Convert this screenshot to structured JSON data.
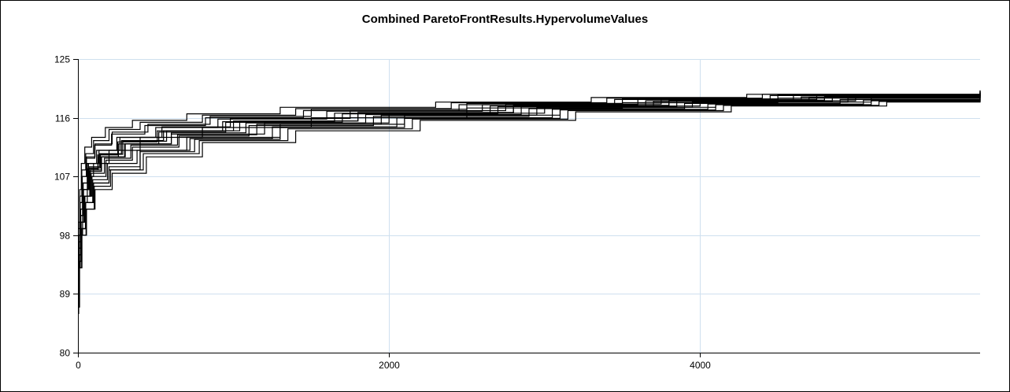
{
  "chart_data": {
    "type": "line",
    "title": "Combined ParetoFrontResults.HypervolumeValues",
    "xlabel": "",
    "ylabel": "",
    "xlim": [
      0,
      5800
    ],
    "ylim": [
      80,
      125
    ],
    "x_ticks": [
      0,
      2000,
      4000
    ],
    "y_ticks": [
      80,
      89,
      98,
      107,
      116,
      125
    ],
    "x_tick_labels": [
      "0",
      "2000",
      "4000"
    ],
    "y_tick_labels": [
      "80",
      "89",
      "98",
      "107",
      "116",
      "125"
    ],
    "grid": true,
    "legend": "none",
    "series_count": 20,
    "series": [
      {
        "values": [
          [
            0,
            86
          ],
          [
            5,
            93
          ],
          [
            15,
            98
          ],
          [
            30,
            103
          ],
          [
            60,
            107
          ],
          [
            100,
            109
          ],
          [
            200,
            111
          ],
          [
            400,
            113
          ],
          [
            800,
            114.5
          ],
          [
            1500,
            116
          ],
          [
            2500,
            117.5
          ],
          [
            3500,
            118.3
          ],
          [
            4500,
            119
          ],
          [
            5800,
            119.8
          ]
        ]
      },
      {
        "values": [
          [
            0,
            88
          ],
          [
            8,
            95
          ],
          [
            20,
            100
          ],
          [
            40,
            104
          ],
          [
            80,
            108
          ],
          [
            150,
            110
          ],
          [
            300,
            112
          ],
          [
            600,
            113.5
          ],
          [
            1200,
            115.2
          ],
          [
            2000,
            116.7
          ],
          [
            3000,
            117.8
          ],
          [
            4000,
            118.6
          ],
          [
            5000,
            119.2
          ],
          [
            5800,
            119.6
          ]
        ]
      },
      {
        "values": [
          [
            0,
            90
          ],
          [
            6,
            96
          ],
          [
            18,
            101
          ],
          [
            35,
            105
          ],
          [
            70,
            108.5
          ],
          [
            140,
            110.5
          ],
          [
            280,
            112.5
          ],
          [
            550,
            114
          ],
          [
            1000,
            115.5
          ],
          [
            1800,
            116.8
          ],
          [
            2800,
            117.9
          ],
          [
            3800,
            118.7
          ],
          [
            4800,
            119.3
          ],
          [
            5800,
            119.9
          ]
        ]
      },
      {
        "values": [
          [
            0,
            87
          ],
          [
            10,
            94
          ],
          [
            25,
            99
          ],
          [
            50,
            103
          ],
          [
            100,
            106
          ],
          [
            200,
            108
          ],
          [
            400,
            111
          ],
          [
            700,
            113
          ],
          [
            1300,
            115
          ],
          [
            2100,
            116.4
          ],
          [
            3100,
            117.6
          ],
          [
            4100,
            118.4
          ],
          [
            5100,
            119
          ],
          [
            5800,
            119.5
          ]
        ]
      },
      {
        "values": [
          [
            0,
            91
          ],
          [
            5,
            97
          ],
          [
            15,
            102
          ],
          [
            30,
            106
          ],
          [
            60,
            109
          ],
          [
            120,
            111
          ],
          [
            250,
            113
          ],
          [
            500,
            114.5
          ],
          [
            900,
            115.8
          ],
          [
            1600,
            117
          ],
          [
            2600,
            118
          ],
          [
            3600,
            118.8
          ],
          [
            4600,
            119.4
          ],
          [
            5800,
            120
          ]
        ]
      },
      {
        "values": [
          [
            0,
            89
          ],
          [
            7,
            95
          ],
          [
            20,
            100
          ],
          [
            45,
            104
          ],
          [
            90,
            107
          ],
          [
            180,
            109.5
          ],
          [
            350,
            111.5
          ],
          [
            650,
            113.2
          ],
          [
            1100,
            114.8
          ],
          [
            1900,
            116.2
          ],
          [
            2900,
            117.4
          ],
          [
            3900,
            118.2
          ],
          [
            4900,
            118.8
          ],
          [
            5800,
            119.2
          ]
        ]
      },
      {
        "values": [
          [
            0,
            92
          ],
          [
            6,
            98
          ],
          [
            14,
            103
          ],
          [
            28,
            107
          ],
          [
            55,
            110
          ],
          [
            110,
            112
          ],
          [
            220,
            113.8
          ],
          [
            450,
            115
          ],
          [
            850,
            116.2
          ],
          [
            1500,
            117.3
          ],
          [
            2500,
            118.2
          ],
          [
            3500,
            118.9
          ],
          [
            4500,
            119.5
          ],
          [
            5800,
            120.1
          ]
        ]
      },
      {
        "values": [
          [
            0,
            88
          ],
          [
            9,
            94
          ],
          [
            22,
            99
          ],
          [
            48,
            103
          ],
          [
            95,
            106.5
          ],
          [
            190,
            109
          ],
          [
            380,
            111
          ],
          [
            720,
            112.8
          ],
          [
            1250,
            114.6
          ],
          [
            2050,
            116
          ],
          [
            3050,
            117.3
          ],
          [
            4050,
            118.1
          ],
          [
            5050,
            118.7
          ],
          [
            5800,
            119.1
          ]
        ]
      },
      {
        "values": [
          [
            0,
            90
          ],
          [
            5,
            96
          ],
          [
            16,
            101
          ],
          [
            33,
            105
          ],
          [
            65,
            108
          ],
          [
            130,
            110
          ],
          [
            260,
            112
          ],
          [
            520,
            113.8
          ],
          [
            950,
            115.3
          ],
          [
            1700,
            116.6
          ],
          [
            2700,
            117.7
          ],
          [
            3700,
            118.5
          ],
          [
            4700,
            119.1
          ],
          [
            5800,
            119.7
          ]
        ]
      },
      {
        "values": [
          [
            0,
            87
          ],
          [
            8,
            93
          ],
          [
            24,
            98
          ],
          [
            52,
            102
          ],
          [
            105,
            105.5
          ],
          [
            210,
            108
          ],
          [
            420,
            110.5
          ],
          [
            780,
            112.5
          ],
          [
            1350,
            114.3
          ],
          [
            2150,
            115.8
          ],
          [
            3150,
            117.1
          ],
          [
            4150,
            117.9
          ],
          [
            5150,
            118.5
          ],
          [
            5800,
            118.9
          ]
        ]
      },
      {
        "values": [
          [
            0,
            93
          ],
          [
            4,
            99
          ],
          [
            12,
            104
          ],
          [
            25,
            108
          ],
          [
            50,
            110.5
          ],
          [
            100,
            112.5
          ],
          [
            200,
            114.2
          ],
          [
            400,
            115.3
          ],
          [
            800,
            116.4
          ],
          [
            1400,
            117.4
          ],
          [
            2400,
            118.3
          ],
          [
            3400,
            119
          ],
          [
            4400,
            119.6
          ],
          [
            5800,
            120.2
          ]
        ]
      },
      {
        "values": [
          [
            0,
            89
          ],
          [
            7,
            95
          ],
          [
            19,
            100
          ],
          [
            40,
            104
          ],
          [
            85,
            107.5
          ],
          [
            170,
            109.8
          ],
          [
            340,
            111.8
          ],
          [
            640,
            113.4
          ],
          [
            1150,
            115
          ],
          [
            1950,
            116.4
          ],
          [
            2950,
            117.6
          ],
          [
            3950,
            118.4
          ],
          [
            4950,
            119
          ],
          [
            5800,
            119.4
          ]
        ]
      },
      {
        "values": [
          [
            0,
            91
          ],
          [
            6,
            97
          ],
          [
            17,
            102
          ],
          [
            34,
            106
          ],
          [
            68,
            109
          ],
          [
            135,
            111
          ],
          [
            270,
            113
          ],
          [
            540,
            114.6
          ],
          [
            980,
            115.9
          ],
          [
            1750,
            117.1
          ],
          [
            2750,
            118.1
          ],
          [
            3750,
            118.8
          ],
          [
            4750,
            119.4
          ],
          [
            5800,
            119.8
          ]
        ]
      },
      {
        "values": [
          [
            0,
            88
          ],
          [
            9,
            94
          ],
          [
            23,
            99
          ],
          [
            50,
            103
          ],
          [
            100,
            106
          ],
          [
            200,
            108.5
          ],
          [
            400,
            110.8
          ],
          [
            750,
            112.7
          ],
          [
            1300,
            114.5
          ],
          [
            2100,
            115.9
          ],
          [
            3100,
            117.2
          ],
          [
            4100,
            118
          ],
          [
            5100,
            118.6
          ],
          [
            5800,
            119
          ]
        ]
      },
      {
        "values": [
          [
            0,
            90
          ],
          [
            5,
            96
          ],
          [
            15,
            101
          ],
          [
            32,
            105
          ],
          [
            64,
            108.2
          ],
          [
            128,
            110.3
          ],
          [
            256,
            112.3
          ],
          [
            510,
            114
          ],
          [
            930,
            115.4
          ],
          [
            1650,
            116.7
          ],
          [
            2650,
            117.8
          ],
          [
            3650,
            118.6
          ],
          [
            4650,
            119.2
          ],
          [
            5800,
            119.6
          ]
        ]
      },
      {
        "values": [
          [
            0,
            92
          ],
          [
            5,
            98
          ],
          [
            13,
            103
          ],
          [
            27,
            107
          ],
          [
            54,
            109.8
          ],
          [
            108,
            111.8
          ],
          [
            216,
            113.5
          ],
          [
            430,
            114.8
          ],
          [
            820,
            116
          ],
          [
            1450,
            117.1
          ],
          [
            2450,
            118
          ],
          [
            3450,
            118.8
          ],
          [
            4450,
            119.4
          ],
          [
            5800,
            120
          ]
        ]
      },
      {
        "values": [
          [
            0,
            87
          ],
          [
            10,
            93
          ],
          [
            26,
            98
          ],
          [
            55,
            102
          ],
          [
            110,
            105
          ],
          [
            220,
            107.5
          ],
          [
            440,
            110
          ],
          [
            800,
            112.2
          ],
          [
            1400,
            114
          ],
          [
            2200,
            115.6
          ],
          [
            3200,
            116.9
          ],
          [
            4200,
            117.8
          ],
          [
            5200,
            118.4
          ],
          [
            5800,
            118.8
          ]
        ]
      },
      {
        "values": [
          [
            0,
            89
          ],
          [
            7,
            95
          ],
          [
            19,
            100
          ],
          [
            38,
            104
          ],
          [
            76,
            107.8
          ],
          [
            152,
            110
          ],
          [
            304,
            112
          ],
          [
            600,
            113.7
          ],
          [
            1080,
            115.2
          ],
          [
            1850,
            116.5
          ],
          [
            2850,
            117.7
          ],
          [
            3850,
            118.5
          ],
          [
            4850,
            119.1
          ],
          [
            5800,
            119.5
          ]
        ]
      },
      {
        "values": [
          [
            0,
            94
          ],
          [
            4,
            100
          ],
          [
            11,
            105
          ],
          [
            22,
            109
          ],
          [
            44,
            111.5
          ],
          [
            88,
            113
          ],
          [
            176,
            114.5
          ],
          [
            350,
            115.6
          ],
          [
            700,
            116.6
          ],
          [
            1300,
            117.6
          ],
          [
            2300,
            118.4
          ],
          [
            3300,
            119.1
          ],
          [
            4300,
            119.6
          ],
          [
            5800,
            120.1
          ]
        ]
      },
      {
        "values": [
          [
            0,
            90
          ],
          [
            6,
            96
          ],
          [
            17,
            101
          ],
          [
            36,
            105
          ],
          [
            72,
            108.3
          ],
          [
            144,
            110.4
          ],
          [
            288,
            112.4
          ],
          [
            570,
            114
          ],
          [
            1040,
            115.5
          ],
          [
            1800,
            116.8
          ],
          [
            2800,
            117.8
          ],
          [
            3800,
            118.6
          ],
          [
            4800,
            119.2
          ],
          [
            5800,
            119.7
          ]
        ]
      }
    ],
    "colors": {
      "series": "#000000",
      "grid": "#cfe0ef",
      "axis": "#000000",
      "background": "#ffffff"
    }
  }
}
